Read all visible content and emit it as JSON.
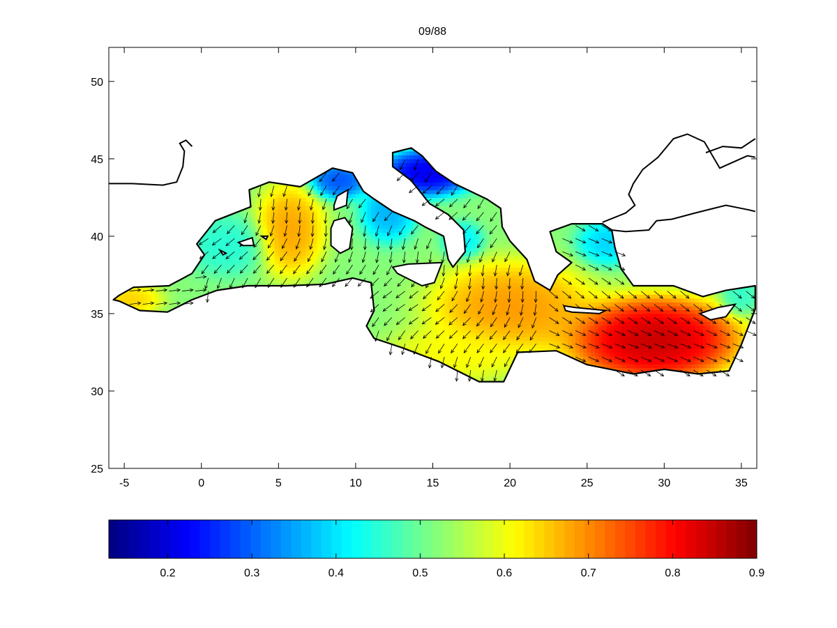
{
  "chart_data": [
    {
      "type": "heatmap",
      "title": "09/88",
      "xlabel": "",
      "ylabel": "",
      "xlim": [
        -6,
        36
      ],
      "ylim": [
        25,
        52.2
      ],
      "xticks": [
        -5,
        0,
        5,
        10,
        15,
        20,
        25,
        30,
        35
      ],
      "yticks": [
        25,
        30,
        35,
        40,
        45,
        50
      ],
      "xtick_labels": [
        "-5",
        "0",
        "5",
        "10",
        "15",
        "20",
        "25",
        "30",
        "35"
      ],
      "ytick_labels": [
        "25",
        "30",
        "35",
        "40",
        "45",
        "50"
      ],
      "grid": false,
      "colormap": "jet",
      "color_range": [
        0.13,
        0.9
      ],
      "overlay": "wind vector arrows",
      "field_hotspots": [
        {
          "lon": 29.2,
          "lat": 33.2,
          "value": 0.89,
          "sx": 3.6,
          "sy": 1.8
        },
        {
          "lon": 20.0,
          "lat": 35.3,
          "value": 0.71,
          "sx": 3.5,
          "sy": 2.0
        },
        {
          "lon": 5.6,
          "lat": 40.3,
          "value": 0.7,
          "sx": 1.5,
          "sy": 2.0
        },
        {
          "lon": -4.8,
          "lat": 35.8,
          "value": 0.66,
          "sx": 1.4,
          "sy": 0.7
        },
        {
          "lon": 16.5,
          "lat": 32.3,
          "value": 0.62,
          "sx": 3.0,
          "sy": 1.3
        },
        {
          "lon": 14.5,
          "lat": 44.0,
          "value": 0.17,
          "sx": 2.0,
          "sy": 1.0
        },
        {
          "lon": 8.8,
          "lat": 43.5,
          "value": 0.26,
          "sx": 1.3,
          "sy": 0.8
        },
        {
          "lon": 12.0,
          "lat": 41.5,
          "value": 0.34,
          "sx": 1.2,
          "sy": 1.3
        },
        {
          "lon": 16.8,
          "lat": 39.6,
          "value": 0.4,
          "sx": 0.9,
          "sy": 0.8
        },
        {
          "lon": 26.2,
          "lat": 39.5,
          "value": 0.37,
          "sx": 1.3,
          "sy": 1.0
        },
        {
          "lon": 1.5,
          "lat": 39.3,
          "value": 0.44,
          "sx": 1.8,
          "sy": 1.3
        },
        {
          "lon": 34.8,
          "lat": 36.0,
          "value": 0.45,
          "sx": 0.8,
          "sy": 0.8
        }
      ],
      "wind_mean": {
        "u": -0.4,
        "v": -0.75
      }
    },
    {
      "type": "colorbar",
      "range": [
        0.13,
        0.9
      ],
      "ticks": [
        0.2,
        0.3,
        0.4,
        0.5,
        0.6,
        0.7,
        0.8,
        0.9
      ],
      "tick_labels": [
        "0.2",
        "0.3",
        "0.4",
        "0.5",
        "0.6",
        "0.7",
        "0.8",
        "0.9"
      ]
    }
  ]
}
